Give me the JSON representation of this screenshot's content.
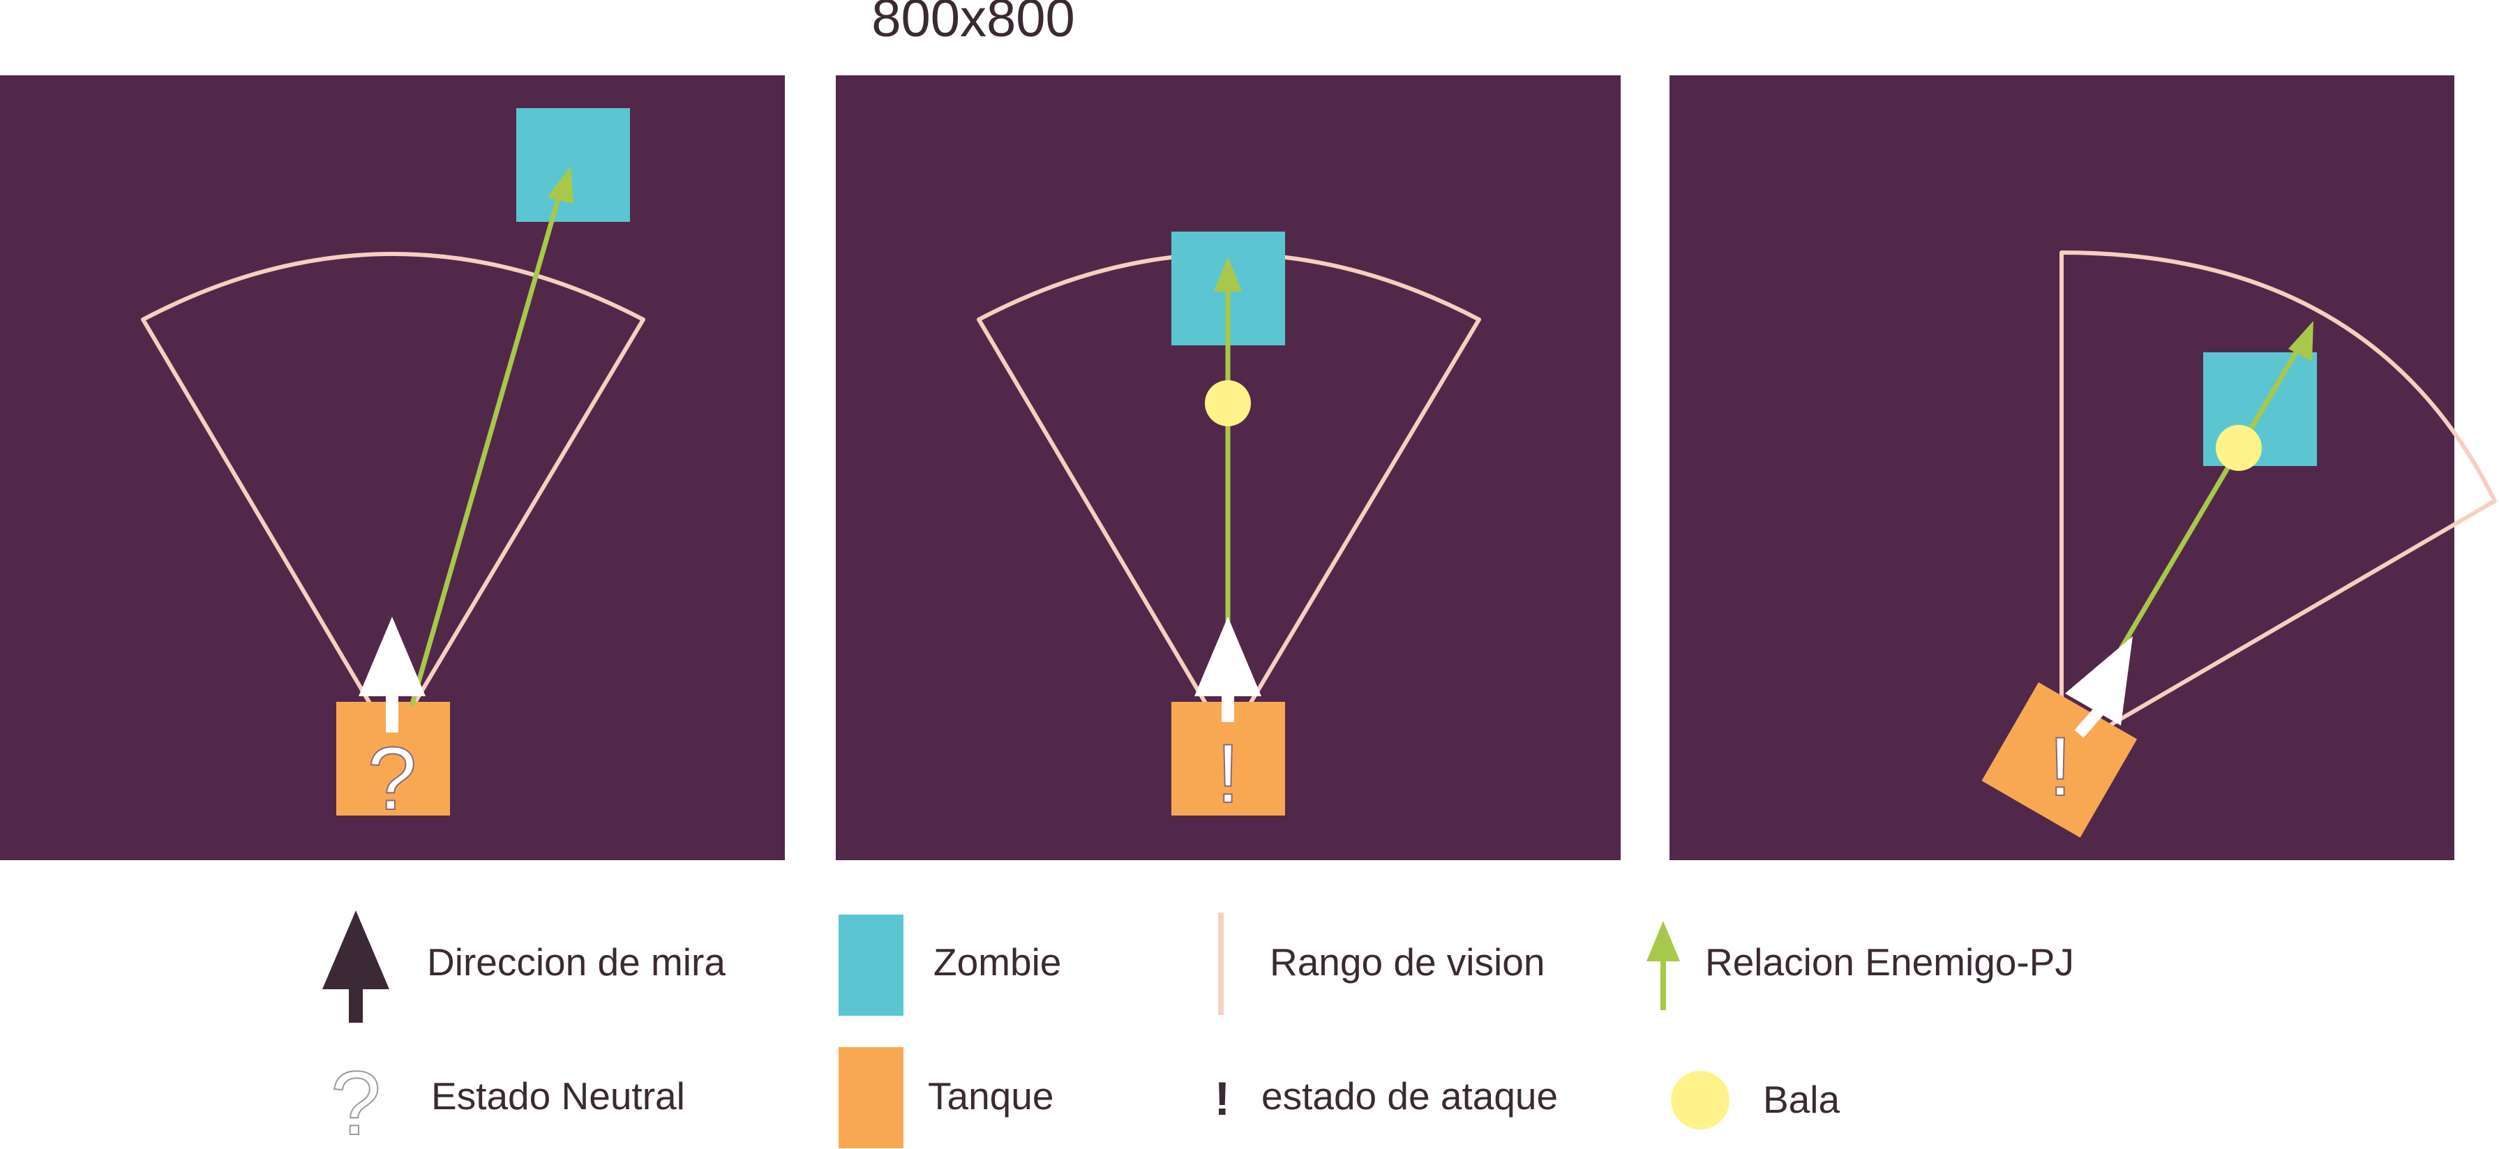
{
  "title": "800x800",
  "colors": {
    "panel": "#52284a",
    "zombie": "#5bc6d1",
    "tank": "#f8a853",
    "vision": "#f7cfc0",
    "relation": "#a7c84a",
    "aim": "#ffffff",
    "bullet": "#fff38a",
    "legend_text": "#3a2a33",
    "legend_aim": "#3b2a35"
  },
  "panels": [
    {
      "state": "neutral",
      "state_symbol": "?"
    },
    {
      "state": "attack",
      "state_symbol": "!"
    },
    {
      "state": "attack",
      "state_symbol": "!"
    }
  ],
  "legend": {
    "aim_direction": {
      "label": "Direccion de mira",
      "icon": "aim-arrow-icon"
    },
    "zombie": {
      "label": "Zombie",
      "icon": "zombie-swatch-icon"
    },
    "vision_range": {
      "label": "Rango de vision",
      "icon": "vision-line-icon"
    },
    "enemy_relation": {
      "label": "Relacion Enemigo-PJ",
      "icon": "relation-arrow-icon"
    },
    "neutral_state": {
      "label": "Estado Neutral",
      "icon": "question-mark-icon",
      "symbol": "?"
    },
    "tank": {
      "label": "Tanque",
      "icon": "tank-swatch-icon"
    },
    "attack_state": {
      "label": "estado de ataque",
      "icon": "exclamation-icon",
      "symbol": "!"
    },
    "bullet": {
      "label": "Bala",
      "icon": "bullet-icon"
    }
  }
}
